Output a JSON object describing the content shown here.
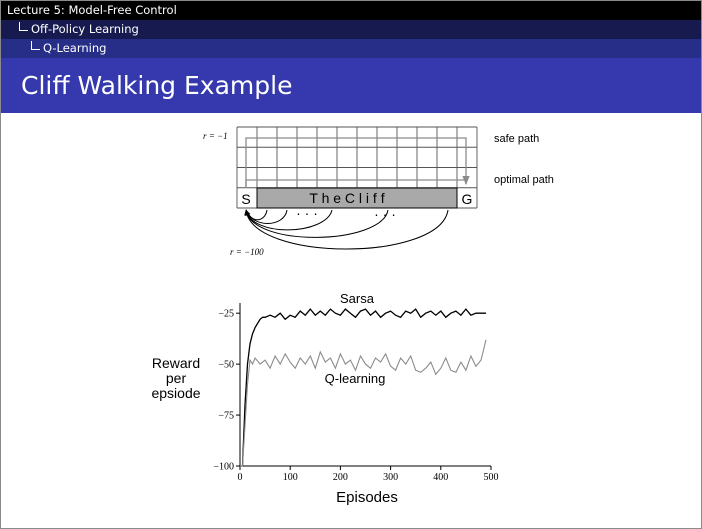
{
  "nav": {
    "level1": "Lecture 5: Model-Free Control",
    "level2": "Off-Policy Learning",
    "level3": "Q-Learning"
  },
  "title": "Cliff Walking Example",
  "cliff": {
    "reward_step": "r = −1",
    "reward_cliff": "r = −100",
    "start": "S",
    "goal": "G",
    "cliff_label": "T h e   C l i f f",
    "safe_path": "safe path",
    "optimal_path": "optimal path",
    "dots1": "·   ·   ·",
    "dots2": "·   ·   ·"
  },
  "chart_data": {
    "type": "line",
    "xlabel": "Episodes",
    "ylabel": "Reward per epsiode",
    "xlim": [
      0,
      500
    ],
    "ylim": [
      -100,
      -20
    ],
    "xticks": [
      0,
      100,
      200,
      300,
      400,
      500
    ],
    "yticks": [
      -25,
      -50,
      -75,
      -100
    ],
    "series": [
      {
        "name": "Sarsa",
        "color": "#000000",
        "x": [
          0,
          5,
          10,
          15,
          20,
          25,
          30,
          35,
          40,
          45,
          50,
          60,
          70,
          80,
          90,
          100,
          110,
          120,
          130,
          140,
          150,
          160,
          170,
          180,
          190,
          200,
          210,
          220,
          230,
          240,
          250,
          260,
          270,
          280,
          290,
          300,
          310,
          320,
          330,
          340,
          350,
          360,
          370,
          380,
          390,
          400,
          410,
          420,
          430,
          440,
          450,
          460,
          470,
          480,
          490
        ],
        "values": [
          -100,
          -100,
          -70,
          -50,
          -40,
          -35,
          -32,
          -30,
          -28,
          -27,
          -27,
          -26,
          -27,
          -25,
          -28,
          -26,
          -27,
          -24,
          -26,
          -23,
          -26,
          -24,
          -26,
          -23,
          -25,
          -26,
          -23,
          -25,
          -27,
          -24,
          -23,
          -26,
          -24,
          -27,
          -25,
          -24,
          -26,
          -27,
          -24,
          -25,
          -23,
          -27,
          -25,
          -24,
          -26,
          -24,
          -27,
          -25,
          -24,
          -26,
          -23,
          -26,
          -25,
          -25,
          -25
        ]
      },
      {
        "name": "Q-learning",
        "color": "#8c8c8c",
        "x": [
          0,
          5,
          10,
          15,
          20,
          25,
          30,
          40,
          50,
          60,
          70,
          80,
          90,
          100,
          110,
          120,
          130,
          140,
          150,
          160,
          170,
          180,
          190,
          200,
          210,
          220,
          230,
          240,
          250,
          260,
          270,
          280,
          290,
          300,
          310,
          320,
          330,
          340,
          350,
          360,
          370,
          380,
          390,
          400,
          410,
          420,
          430,
          440,
          450,
          460,
          470,
          480,
          490
        ],
        "values": [
          -100,
          -100,
          -80,
          -60,
          -48,
          -50,
          -47,
          -50,
          -48,
          -52,
          -46,
          -50,
          -45,
          -49,
          -52,
          -47,
          -50,
          -46,
          -52,
          -44,
          -49,
          -47,
          -52,
          -45,
          -50,
          -48,
          -53,
          -46,
          -50,
          -52,
          -47,
          -49,
          -45,
          -51,
          -53,
          -47,
          -50,
          -46,
          -53,
          -54,
          -52,
          -49,
          -55,
          -52,
          -47,
          -53,
          -54,
          -49,
          -53,
          -46,
          -51,
          -48,
          -38
        ]
      }
    ]
  }
}
